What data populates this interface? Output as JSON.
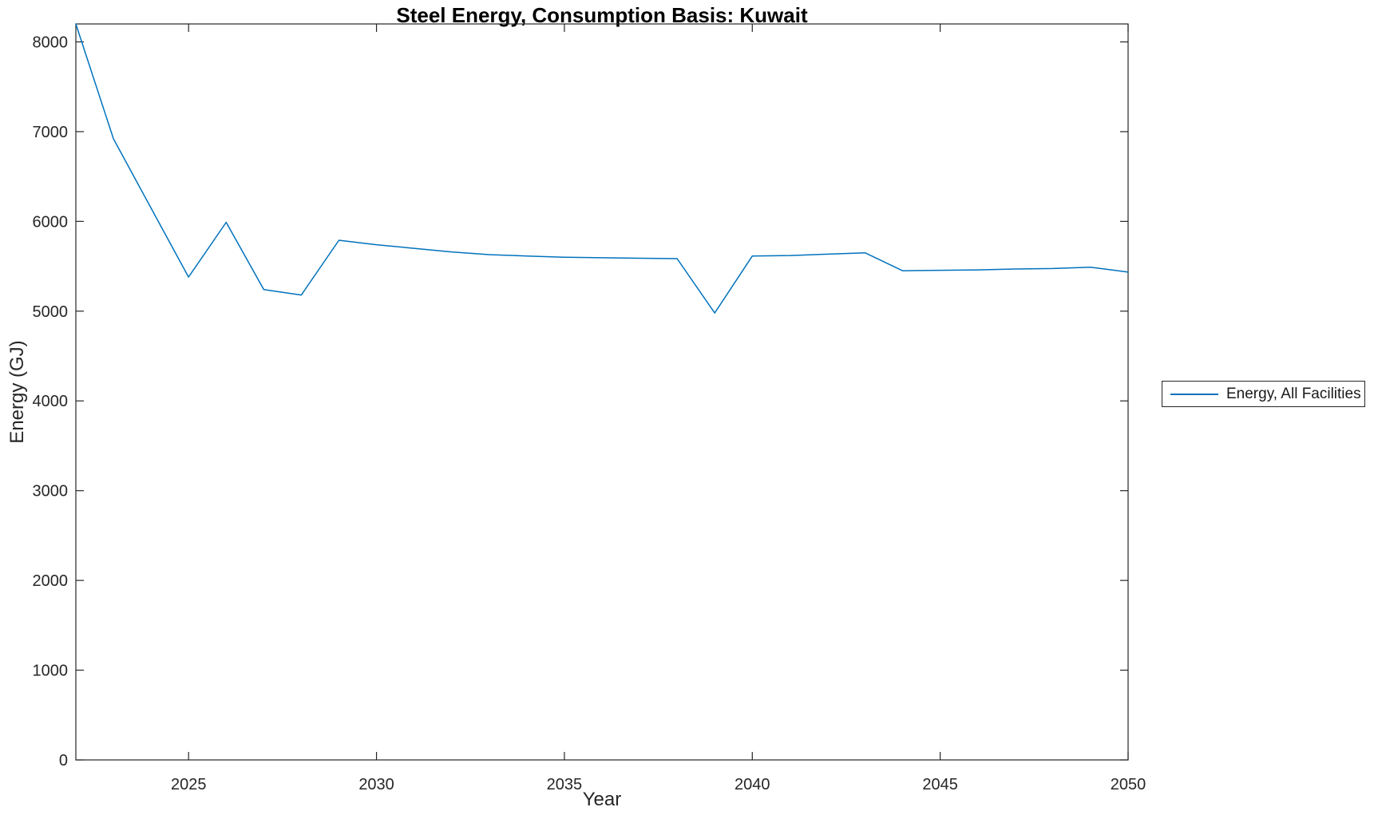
{
  "figure": {
    "background": "#ffffff"
  },
  "chart_data": {
    "type": "line",
    "title": "Steel Energy, Consumption Basis: Kuwait",
    "xlabel": "Year",
    "ylabel": "Energy (GJ)",
    "xlim": [
      2022,
      2050
    ],
    "ylim": [
      0,
      8200
    ],
    "x_ticks": [
      2025,
      2030,
      2035,
      2040,
      2045,
      2050
    ],
    "y_ticks": [
      0,
      1000,
      2000,
      3000,
      4000,
      5000,
      6000,
      7000,
      8000
    ],
    "grid": false,
    "box": true,
    "tick_direction": "in",
    "legend_position": "right-outside",
    "line_color": "#0072BD",
    "axis_color": "#262626",
    "series": [
      {
        "name": "Energy, All Facilities",
        "x": [
          2022,
          2023,
          2024,
          2025,
          2026,
          2027,
          2028,
          2029,
          2030,
          2031,
          2032,
          2033,
          2034,
          2035,
          2036,
          2037,
          2038,
          2039,
          2040,
          2041,
          2042,
          2043,
          2044,
          2045,
          2046,
          2047,
          2048,
          2049,
          2050
        ],
        "values": [
          8200,
          6920,
          6150,
          5380,
          5990,
          5240,
          5180,
          5790,
          5740,
          5700,
          5660,
          5630,
          5615,
          5600,
          5595,
          5590,
          5585,
          4980,
          5615,
          5620,
          5635,
          5650,
          5450,
          5455,
          5460,
          5470,
          5475,
          5490,
          5435
        ]
      }
    ]
  },
  "legend": {
    "entries": [
      {
        "label": "Energy, All Facilities",
        "color": "#0072BD"
      }
    ]
  }
}
